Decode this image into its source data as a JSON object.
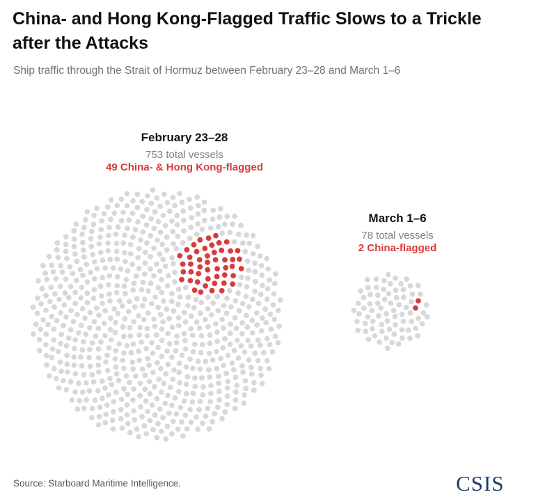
{
  "title": "China- and Hong Kong-Flagged Traffic Slows to a Trickle after the Attacks",
  "subtitle": "Ship traffic through the Strait of Hormuz between February 23–28 and March 1–6",
  "source": "Source: Starboard Maritime Intelligence.",
  "logo_text": "CSIS",
  "colors": {
    "vessel": "#d8d8d8",
    "flagged": "#d93a3a"
  },
  "chart_data": {
    "type": "dot-cluster",
    "groups": [
      {
        "label": "February 23–28",
        "total_text": "753 total vessels",
        "flagged_text": "49 China- & Hong Kong-flagged",
        "total": 753,
        "flagged": 49
      },
      {
        "label": "March 1–6",
        "total_text": "78 total vessels",
        "flagged_text": "2 China-flagged",
        "total": 78,
        "flagged": 2
      }
    ]
  }
}
